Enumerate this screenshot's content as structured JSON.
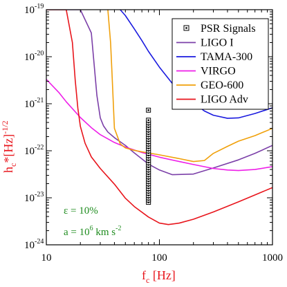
{
  "chart_data": {
    "type": "line",
    "title": "",
    "xlabel": {
      "base": "f",
      "sub": "c",
      "rest": " [Hz]"
    },
    "ylabel": {
      "base": "h",
      "sub": "c",
      "rest": "*[Hz]",
      "sup": "-1/2"
    },
    "x_scale": "log",
    "y_scale": "log",
    "xlim": [
      10,
      1000
    ],
    "ylim": [
      1e-24,
      1e-19
    ],
    "grid": false,
    "legend_position": "top-right",
    "axis_label_color": "#e8141b",
    "x_ticks": [
      {
        "mant": "10",
        "exp": ""
      },
      {
        "mant": "100",
        "exp": ""
      },
      {
        "mant": "1000",
        "exp": ""
      }
    ],
    "y_ticks": [
      {
        "mant": "10",
        "exp": "-24"
      },
      {
        "mant": "10",
        "exp": "-23"
      },
      {
        "mant": "10",
        "exp": "-22"
      },
      {
        "mant": "10",
        "exp": "-21"
      },
      {
        "mant": "10",
        "exp": "-20"
      },
      {
        "mant": "10",
        "exp": "-19"
      }
    ],
    "series": [
      {
        "name": "LIGO I",
        "color": "#7b3fa8",
        "x": [
          10,
          20,
          25,
          28,
          30,
          32,
          35,
          40,
          50,
          60,
          80,
          100,
          130,
          200,
          300,
          500,
          700,
          1000
        ],
        "y": [
          1e-19,
          1e-19,
          3.2e-20,
          1.5e-21,
          5e-22,
          3.4e-22,
          2.5e-22,
          1.9e-22,
          1.3e-22,
          9e-23,
          5.2e-23,
          3.9e-23,
          3.1e-23,
          3.2e-23,
          4.3e-23,
          6.4e-23,
          8.8e-23,
          1.3e-22
        ]
      },
      {
        "name": "TAMA-300",
        "color": "#1a1adf",
        "x": [
          45,
          50,
          60,
          70,
          80,
          100,
          130,
          150,
          200,
          250,
          300,
          400,
          500,
          700,
          1000
        ],
        "y": [
          1e-19,
          7.5e-20,
          3.9e-20,
          2.2e-20,
          1.3e-20,
          6e-21,
          2.7e-21,
          1.9e-21,
          1.05e-21,
          7e-22,
          5.7e-22,
          4.9e-22,
          5e-22,
          6.2e-22,
          8.2e-22
        ]
      },
      {
        "name": "VIRGO",
        "color": "#ee1ee8",
        "x": [
          10,
          13,
          15,
          20,
          25,
          30,
          40,
          50,
          70,
          100,
          150,
          200,
          300,
          400,
          500,
          700,
          1000
        ],
        "y": [
          3.3e-21,
          1.7e-21,
          1.1e-21,
          5.1e-22,
          3.1e-22,
          2.2e-22,
          1.5e-22,
          1.2e-22,
          9.2e-23,
          7.3e-23,
          5.9e-23,
          5.1e-23,
          4.2e-23,
          3.9e-23,
          3.8e-23,
          4e-23,
          4.6e-23
        ]
      },
      {
        "name": "GEO-600",
        "color": "#f0a00a",
        "x": [
          35,
          37,
          38,
          40,
          45,
          50,
          60,
          70,
          80,
          100,
          150,
          200,
          250,
          300,
          400,
          500,
          700,
          1000
        ],
        "y": [
          1e-19,
          2e-20,
          5e-21,
          3e-22,
          1.4e-22,
          1.15e-22,
          1.02e-22,
          9.5e-23,
          9e-23,
          8.2e-23,
          6.8e-23,
          5.9e-23,
          6.2e-23,
          8.8e-23,
          1.24e-22,
          1.6e-22,
          2.1e-22,
          3e-22
        ]
      },
      {
        "name": "LIGO Adv",
        "color": "#e8141b",
        "x": [
          10,
          15,
          17,
          18,
          19,
          20,
          22,
          25,
          30,
          40,
          50,
          60,
          80,
          100,
          120,
          150,
          200,
          300,
          500,
          700,
          1000
        ],
        "y": [
          1e-19,
          1e-19,
          2e-20,
          3.2e-21,
          8e-22,
          3.3e-22,
          1.45e-22,
          7.4e-23,
          4.2e-23,
          1.95e-23,
          9.8e-24,
          6.5e-24,
          3.9e-24,
          2.9e-24,
          2.7e-24,
          2.9e-24,
          3.5e-24,
          5e-24,
          8.2e-24,
          1.15e-23,
          1.65e-23
        ]
      }
    ],
    "psr_signals": {
      "name": "PSR Signals",
      "x": 80,
      "y": [
        8e-24,
        9e-24,
        1e-23,
        1.12e-23,
        1.26e-23,
        1.41e-23,
        1.58e-23,
        1.78e-23,
        2e-23,
        2.24e-23,
        2.51e-23,
        2.82e-23,
        3.16e-23,
        3.55e-23,
        3.98e-23,
        4.47e-23,
        5.01e-23,
        5.62e-23,
        6.31e-23,
        7.08e-23,
        7.94e-23,
        8.91e-23,
        1e-22,
        1.12e-22,
        1.26e-22,
        1.41e-22,
        1.58e-22,
        1.78e-22,
        2e-22,
        2.24e-22,
        2.51e-22,
        2.82e-22,
        3.16e-22,
        3.55e-22,
        3.98e-22,
        4.47e-22,
        7.3e-22
      ]
    },
    "legend_order": [
      "PSR Signals",
      "LIGO I",
      "TAMA-300",
      "VIRGO",
      "GEO-600",
      "LIGO Adv"
    ],
    "annotations": {
      "color": "#1e8c1e",
      "line1": "ε = 10%",
      "line2_pre": "a = 10",
      "line2_exp1": "6",
      "line2_mid": " km s",
      "line2_exp2": "-2"
    }
  }
}
